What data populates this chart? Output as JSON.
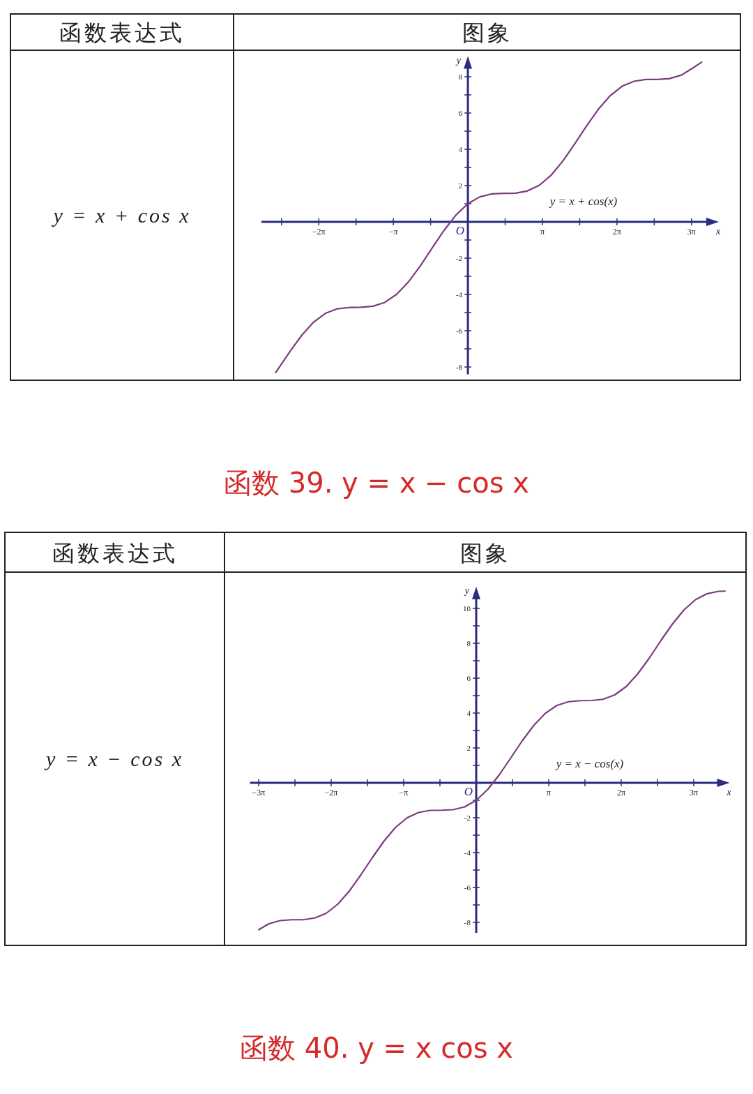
{
  "chart_data": [
    {
      "type": "line",
      "xlabel": "x",
      "ylabel": "y",
      "xlim": [
        -8.7,
        10.4
      ],
      "ylim": [
        -8.4,
        8.9
      ],
      "xticks": [
        {
          "value": -7.854,
          "label": null
        },
        {
          "value": -6.283,
          "label": "−2π"
        },
        {
          "value": -4.712,
          "label": null
        },
        {
          "value": -3.142,
          "label": "−π"
        },
        {
          "value": -1.571,
          "label": null
        },
        {
          "value": 1.571,
          "label": null
        },
        {
          "value": 3.142,
          "label": "π"
        },
        {
          "value": 4.712,
          "label": null
        },
        {
          "value": 6.283,
          "label": "2π"
        },
        {
          "value": 7.854,
          "label": null
        },
        {
          "value": 9.425,
          "label": "3π"
        }
      ],
      "yticks": [
        {
          "value": -8,
          "label": "-8"
        },
        {
          "value": -7,
          "label": null
        },
        {
          "value": -6,
          "label": "-6"
        },
        {
          "value": -5,
          "label": null
        },
        {
          "value": -4,
          "label": "-4"
        },
        {
          "value": -3,
          "label": null
        },
        {
          "value": -2,
          "label": "-2"
        },
        {
          "value": -1,
          "label": null
        },
        {
          "value": 1,
          "label": null
        },
        {
          "value": 2,
          "label": "2"
        },
        {
          "value": 3,
          "label": null
        },
        {
          "value": 4,
          "label": "4"
        },
        {
          "value": 5,
          "label": null
        },
        {
          "value": 6,
          "label": "6"
        },
        {
          "value": 7,
          "label": null
        },
        {
          "value": 8,
          "label": "8"
        }
      ],
      "series": [
        {
          "color": "#7b3b7e",
          "x": [
            -8.1,
            -7.5,
            -7,
            -6.5,
            -6,
            -5.5,
            -5,
            -4.5,
            -4,
            -3.5,
            -3,
            -2.5,
            -2,
            -1.5,
            -1,
            -0.5,
            0,
            0.5,
            1,
            1.5,
            2,
            2.5,
            3,
            3.5,
            4,
            4.5,
            5,
            5.5,
            6,
            6.5,
            7,
            7.5,
            8,
            8.5,
            9,
            9.5,
            9.85
          ],
          "values": [
            -8.3,
            -7.15,
            -6.25,
            -5.52,
            -5.04,
            -4.79,
            -4.72,
            -4.71,
            -4.65,
            -4.44,
            -3.99,
            -3.3,
            -2.42,
            -1.43,
            -0.46,
            0.38,
            1,
            1.38,
            1.54,
            1.57,
            1.58,
            1.7,
            2.01,
            2.56,
            3.35,
            4.29,
            5.28,
            6.21,
            6.96,
            7.48,
            7.75,
            7.85,
            7.85,
            7.9,
            8.09,
            8.5,
            8.8
          ]
        }
      ],
      "annotations": [
        "函数表达式",
        "图象",
        "y = x + cos x",
        "y = x + cos(x)",
        "O"
      ]
    },
    {
      "type": "line",
      "title": "函数 39. y = x − cos x",
      "xlabel": "x",
      "ylabel": "y",
      "xlim": [
        -9.8,
        10.8
      ],
      "ylim": [
        -8.6,
        11
      ],
      "xticks": [
        {
          "value": -9.425,
          "label": "−3π"
        },
        {
          "value": -7.854,
          "label": null
        },
        {
          "value": -6.283,
          "label": "−2π"
        },
        {
          "value": -4.712,
          "label": null
        },
        {
          "value": -3.142,
          "label": "−π"
        },
        {
          "value": -1.571,
          "label": null
        },
        {
          "value": 1.571,
          "label": null
        },
        {
          "value": 3.142,
          "label": "π"
        },
        {
          "value": 4.712,
          "label": null
        },
        {
          "value": 6.283,
          "label": "2π"
        },
        {
          "value": 7.854,
          "label": null
        },
        {
          "value": 9.425,
          "label": "3π"
        }
      ],
      "yticks": [
        {
          "value": -8,
          "label": "-8"
        },
        {
          "value": -7,
          "label": null
        },
        {
          "value": -6,
          "label": "-6"
        },
        {
          "value": -5,
          "label": null
        },
        {
          "value": -4,
          "label": "-4"
        },
        {
          "value": -3,
          "label": null
        },
        {
          "value": -2,
          "label": "-2"
        },
        {
          "value": -1,
          "label": null
        },
        {
          "value": 1,
          "label": null
        },
        {
          "value": 2,
          "label": "2"
        },
        {
          "value": 3,
          "label": null
        },
        {
          "value": 4,
          "label": "4"
        },
        {
          "value": 5,
          "label": null
        },
        {
          "value": 6,
          "label": "6"
        },
        {
          "value": 7,
          "label": null
        },
        {
          "value": 8,
          "label": "8"
        },
        {
          "value": 9,
          "label": null
        },
        {
          "value": 10,
          "label": "10"
        }
      ],
      "series": [
        {
          "color": "#7b3b7e",
          "x": [
            -9.42,
            -9,
            -8.5,
            -8,
            -7.5,
            -7,
            -6.5,
            -6,
            -5.5,
            -5,
            -4.5,
            -4,
            -3.5,
            -3,
            -2.5,
            -2,
            -1.5,
            -1,
            -0.5,
            0,
            0.5,
            1,
            1.5,
            2,
            2.5,
            3,
            3.5,
            4,
            4.5,
            5,
            5.5,
            6,
            6.5,
            7,
            7.5,
            8,
            8.5,
            9,
            9.5,
            10,
            10.5,
            10.78
          ],
          "values": [
            -8.42,
            -8.09,
            -7.9,
            -7.85,
            -7.85,
            -7.75,
            -7.48,
            -6.96,
            -6.21,
            -5.28,
            -4.29,
            -3.35,
            -2.56,
            -2.01,
            -1.7,
            -1.58,
            -1.57,
            -1.54,
            -1.38,
            -1,
            -0.38,
            0.46,
            1.43,
            2.42,
            3.3,
            3.99,
            4.44,
            4.65,
            4.71,
            4.72,
            4.79,
            5.04,
            5.52,
            6.25,
            7.15,
            8.15,
            9.1,
            9.91,
            10.5,
            10.84,
            10.98,
            10.99
          ]
        }
      ],
      "annotations": [
        "函数表达式",
        "图象",
        "y = x − cos x",
        "y = x − cos(x)",
        "O",
        "函数 40. y = x cos x"
      ]
    }
  ]
}
